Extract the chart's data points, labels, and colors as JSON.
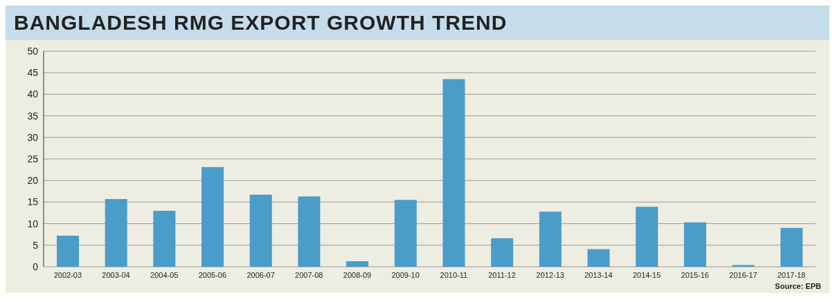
{
  "chart_data": {
    "type": "bar",
    "title": "BANGLADESH RMG EXPORT GROWTH TREND",
    "categories": [
      "2002-03",
      "2003-04",
      "2004-05",
      "2005-06",
      "2006-07",
      "2007-08",
      "2008-09",
      "2009-10",
      "2010-11",
      "2011-12",
      "2012-13",
      "2013-14",
      "2014-15",
      "2015-16",
      "2016-17",
      "2017-18"
    ],
    "values": [
      7.2,
      15.7,
      13.0,
      23.1,
      16.7,
      16.3,
      1.3,
      15.5,
      43.5,
      6.6,
      12.8,
      4.1,
      13.9,
      10.3,
      0.4,
      9.0
    ],
    "color": "#4a9cc9",
    "ylim": [
      0,
      50
    ],
    "yticks": [
      0,
      5,
      10,
      15,
      20,
      25,
      30,
      35,
      40,
      45,
      50
    ],
    "grid": "y",
    "annotations": [
      "Source: EPB"
    ]
  }
}
